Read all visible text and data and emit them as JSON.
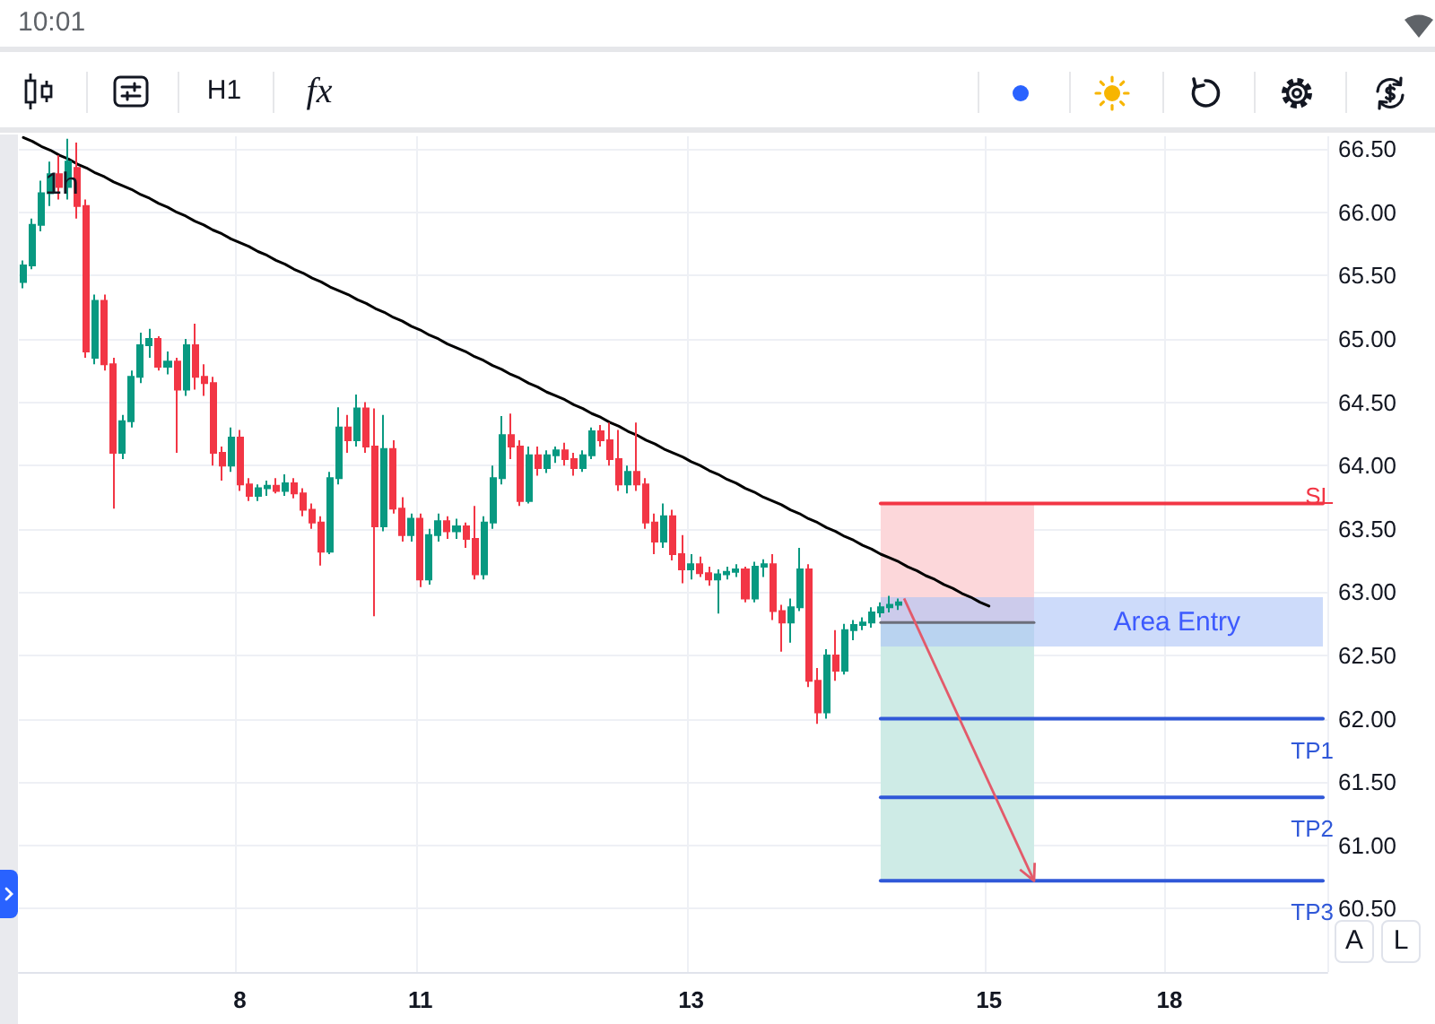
{
  "chart_data": {
    "type": "candlestick",
    "title": "1h",
    "categories": [
      null,
      null,
      null,
      null,
      null,
      null,
      null,
      null,
      null,
      null,
      null,
      null,
      null,
      null,
      null,
      null,
      null,
      null,
      null,
      null,
      null,
      null,
      null,
      null,
      "8",
      null,
      null,
      null,
      null,
      null,
      null,
      null,
      null,
      null,
      null,
      null,
      null,
      null,
      null,
      null,
      null,
      null,
      null,
      null,
      "11",
      null,
      null,
      null,
      null,
      null,
      null,
      null,
      null,
      null,
      null,
      null,
      null,
      null,
      null,
      null,
      null,
      null,
      null,
      null,
      null,
      null,
      null,
      null,
      null,
      null,
      null,
      null,
      null,
      null,
      "13",
      null,
      null,
      null,
      null,
      null,
      null,
      null,
      null,
      null,
      null,
      null,
      null,
      null,
      null,
      null,
      null,
      null,
      null,
      null,
      null,
      null,
      null,
      null,
      null,
      null,
      null,
      null,
      null,
      null,
      null,
      null,
      null,
      "15",
      null,
      null,
      null,
      null,
      null,
      null,
      null,
      null,
      null,
      null,
      null,
      null,
      null,
      null,
      null,
      null,
      null,
      null,
      null,
      "18",
      null,
      null,
      null,
      null,
      null,
      null,
      null,
      null,
      null,
      null,
      null,
      null,
      null,
      null,
      null,
      null,
      null
    ],
    "ohlc": [
      [
        65.45,
        65.62,
        65.4,
        65.58
      ],
      [
        65.58,
        65.95,
        65.55,
        65.9
      ],
      [
        65.9,
        66.25,
        65.85,
        66.15
      ],
      [
        66.15,
        66.4,
        66.05,
        66.3
      ],
      [
        66.3,
        66.45,
        66.1,
        66.2
      ],
      [
        66.2,
        66.58,
        66.1,
        66.4
      ],
      [
        66.35,
        66.55,
        65.95,
        66.05
      ],
      [
        66.05,
        66.1,
        64.85,
        64.9
      ],
      [
        64.85,
        65.35,
        64.8,
        65.3
      ],
      [
        65.3,
        65.35,
        64.75,
        64.8
      ],
      [
        64.8,
        64.85,
        63.66,
        64.1
      ],
      [
        64.1,
        64.4,
        64.05,
        64.35
      ],
      [
        64.35,
        64.75,
        64.3,
        64.7
      ],
      [
        64.7,
        65.05,
        64.65,
        64.95
      ],
      [
        64.95,
        65.08,
        64.85,
        65.0
      ],
      [
        65.0,
        65.02,
        64.75,
        64.78
      ],
      [
        64.78,
        64.9,
        64.72,
        64.82
      ],
      [
        64.82,
        64.85,
        64.1,
        64.6
      ],
      [
        64.6,
        65.0,
        64.55,
        64.95
      ],
      [
        64.95,
        65.12,
        64.6,
        64.7
      ],
      [
        64.7,
        64.8,
        64.55,
        64.65
      ],
      [
        64.65,
        64.7,
        64.0,
        64.1
      ],
      [
        64.1,
        64.15,
        63.88,
        64.0
      ],
      [
        64.0,
        64.3,
        63.95,
        64.22
      ],
      [
        64.22,
        64.28,
        63.8,
        63.85
      ],
      [
        63.85,
        63.9,
        63.72,
        63.76
      ],
      [
        63.76,
        63.85,
        63.72,
        63.82
      ],
      [
        63.82,
        63.88,
        63.76,
        63.84
      ],
      [
        63.84,
        63.9,
        63.78,
        63.8
      ],
      [
        63.8,
        63.93,
        63.76,
        63.86
      ],
      [
        63.86,
        63.9,
        63.74,
        63.78
      ],
      [
        63.78,
        63.82,
        63.6,
        63.65
      ],
      [
        63.65,
        63.7,
        63.5,
        63.55
      ],
      [
        63.55,
        63.6,
        63.21,
        63.32
      ],
      [
        63.32,
        63.95,
        63.3,
        63.9
      ],
      [
        63.9,
        64.46,
        63.85,
        64.3
      ],
      [
        64.3,
        64.4,
        64.1,
        64.2
      ],
      [
        64.2,
        64.56,
        64.15,
        64.45
      ],
      [
        64.45,
        64.5,
        64.1,
        64.15
      ],
      [
        64.15,
        64.45,
        62.81,
        63.52
      ],
      [
        63.52,
        64.4,
        63.48,
        64.13
      ],
      [
        64.13,
        64.2,
        63.62,
        63.66
      ],
      [
        63.66,
        63.75,
        63.4,
        63.45
      ],
      [
        63.45,
        63.62,
        63.4,
        63.58
      ],
      [
        63.58,
        63.62,
        63.04,
        63.1
      ],
      [
        63.1,
        63.5,
        63.06,
        63.45
      ],
      [
        63.45,
        63.62,
        63.4,
        63.56
      ],
      [
        63.56,
        63.6,
        63.42,
        63.48
      ],
      [
        63.48,
        63.58,
        63.42,
        63.52
      ],
      [
        63.52,
        63.55,
        63.35,
        63.42
      ],
      [
        63.42,
        63.68,
        63.1,
        63.14
      ],
      [
        63.14,
        63.6,
        63.1,
        63.55
      ],
      [
        63.55,
        64.0,
        63.5,
        63.9
      ],
      [
        63.9,
        64.39,
        63.85,
        64.24
      ],
      [
        64.24,
        64.41,
        64.05,
        64.15
      ],
      [
        64.15,
        64.2,
        63.68,
        63.72
      ],
      [
        63.72,
        64.15,
        63.7,
        64.08
      ],
      [
        64.08,
        64.15,
        63.92,
        63.98
      ],
      [
        63.98,
        64.12,
        63.94,
        64.08
      ],
      [
        64.08,
        64.15,
        64.02,
        64.12
      ],
      [
        64.12,
        64.18,
        64.0,
        64.05
      ],
      [
        64.05,
        64.1,
        63.92,
        63.98
      ],
      [
        63.98,
        64.12,
        63.95,
        64.08
      ],
      [
        64.08,
        64.3,
        64.05,
        64.27
      ],
      [
        64.27,
        64.32,
        64.15,
        64.2
      ],
      [
        64.2,
        64.34,
        64.0,
        64.05
      ],
      [
        64.05,
        64.28,
        63.8,
        63.85
      ],
      [
        63.85,
        64.0,
        63.78,
        63.95
      ],
      [
        63.95,
        64.34,
        63.8,
        63.85
      ],
      [
        63.85,
        63.9,
        63.5,
        63.55
      ],
      [
        63.55,
        63.62,
        63.3,
        63.4
      ],
      [
        63.4,
        63.7,
        63.35,
        63.6
      ],
      [
        63.6,
        63.65,
        63.25,
        63.3
      ],
      [
        63.3,
        63.45,
        63.07,
        63.18
      ],
      [
        63.18,
        63.3,
        63.1,
        63.22
      ],
      [
        63.22,
        63.28,
        63.12,
        63.15
      ],
      [
        63.15,
        63.2,
        63.05,
        63.1
      ],
      [
        63.1,
        63.18,
        62.83,
        63.14
      ],
      [
        63.14,
        63.2,
        63.1,
        63.16
      ],
      [
        63.16,
        63.22,
        63.12,
        63.18
      ],
      [
        63.18,
        63.2,
        62.92,
        62.95
      ],
      [
        62.95,
        63.24,
        62.92,
        63.2
      ],
      [
        63.2,
        63.26,
        63.12,
        63.22
      ],
      [
        63.22,
        63.3,
        62.78,
        62.85
      ],
      [
        62.85,
        62.9,
        62.53,
        62.76
      ],
      [
        62.76,
        62.95,
        62.6,
        62.88
      ],
      [
        62.88,
        63.35,
        62.85,
        63.18
      ],
      [
        63.18,
        63.22,
        62.25,
        62.3
      ],
      [
        62.3,
        62.4,
        61.96,
        62.05
      ],
      [
        62.05,
        62.55,
        62.0,
        62.5
      ],
      [
        62.5,
        62.7,
        62.3,
        62.38
      ],
      [
        62.38,
        62.75,
        62.35,
        62.7
      ],
      [
        62.7,
        62.78,
        62.62,
        62.74
      ],
      [
        62.74,
        62.8,
        62.7,
        62.76
      ],
      [
        62.76,
        62.88,
        62.72,
        62.84
      ],
      [
        62.84,
        62.92,
        62.8,
        62.88
      ],
      [
        62.88,
        62.97,
        62.84,
        62.9
      ],
      [
        62.9,
        62.95,
        62.86,
        62.92
      ],
      null,
      null,
      null,
      null,
      null,
      null,
      null,
      null,
      null,
      null,
      null,
      null,
      null,
      null,
      null,
      null,
      null,
      null,
      null,
      null,
      null,
      null,
      null,
      null,
      null,
      null,
      null,
      null,
      null,
      null,
      null,
      null,
      null,
      null,
      null,
      null,
      null,
      null,
      null,
      null,
      null,
      null,
      null,
      null,
      null,
      null,
      null
    ],
    "colors": [
      "#089981",
      "#089981",
      "#089981",
      "#089981",
      "#f23645",
      "#089981",
      "#f23645",
      "#f23645",
      "#089981",
      "#f23645",
      "#f23645",
      "#089981",
      "#089981",
      "#089981",
      "#089981",
      "#f23645",
      "#089981",
      "#f23645",
      "#089981",
      "#f23645",
      "#f23645",
      "#f23645",
      "#f23645",
      "#089981",
      "#f23645",
      "#f23645",
      "#089981",
      "#089981",
      "#f23645",
      "#089981",
      "#f23645",
      "#f23645",
      "#f23645",
      "#f23645",
      "#089981",
      "#089981",
      "#f23645",
      "#089981",
      "#f23645",
      "#f23645",
      "#089981",
      "#f23645",
      "#f23645",
      "#089981",
      "#f23645",
      "#089981",
      "#089981",
      "#f23645",
      "#089981",
      "#f23645",
      "#f23645",
      "#089981",
      "#089981",
      "#089981",
      "#f23645",
      "#f23645",
      "#089981",
      "#f23645",
      "#089981",
      "#089981",
      "#f23645",
      "#f23645",
      "#089981",
      "#089981",
      "#f23645",
      "#f23645",
      "#f23645",
      "#089981",
      "#f23645",
      "#f23645",
      "#f23645",
      "#089981",
      "#f23645",
      "#f23645",
      "#089981",
      "#f23645",
      "#f23645",
      "#089981",
      "#089981",
      "#089981",
      "#f23645",
      "#089981",
      "#089981",
      "#f23645",
      "#f23645",
      "#089981",
      "#089981",
      "#f23645",
      "#f23645",
      "#089981",
      "#f23645",
      "#089981",
      "#089981",
      "#089981",
      "#089981",
      "#089981",
      "#089981",
      "#089981",
      null,
      null,
      null,
      null,
      null,
      null,
      null,
      null,
      null,
      null,
      null,
      null,
      null,
      null,
      null,
      null,
      null,
      null,
      null,
      null,
      null,
      null,
      null,
      null,
      null,
      null,
      null,
      null,
      null,
      null,
      null,
      null,
      null,
      null,
      null,
      null,
      null,
      null,
      null,
      null,
      null,
      null,
      null,
      null,
      null,
      null,
      null
    ],
    "ylim": [
      60.0,
      66.6
    ],
    "yticks": [
      {
        "value": 60.5,
        "label": "60.50"
      },
      {
        "value": 61.0,
        "label": "61.00"
      },
      {
        "value": 61.5,
        "label": "61.50"
      },
      {
        "value": 62.0,
        "label": "62.00"
      },
      {
        "value": 62.5,
        "label": "62.50"
      },
      {
        "value": 63.0,
        "label": "63.00"
      },
      {
        "value": 63.5,
        "label": "63.50"
      },
      {
        "value": 64.0,
        "label": "64.00"
      },
      {
        "value": 64.5,
        "label": "64.50"
      },
      {
        "value": 65.0,
        "label": "65.00"
      },
      {
        "value": 65.5,
        "label": "65.50"
      },
      {
        "value": 66.0,
        "label": "66.00"
      },
      {
        "value": 66.5,
        "label": "66.50"
      }
    ],
    "grid": true,
    "bands": [
      {
        "axis": "y",
        "from": 62.57,
        "to": 62.96,
        "label": "Area Entry",
        "color": "#cddbfa"
      }
    ],
    "series": [
      {
        "type": "line",
        "color": "#6b6e7a",
        "values": [
          null,
          null,
          null,
          null,
          null,
          null,
          null,
          null,
          null,
          null,
          null,
          null,
          null,
          null,
          null,
          null,
          null,
          null,
          null,
          null,
          null,
          null,
          null,
          null,
          null,
          null,
          null,
          null,
          null,
          null,
          null,
          null,
          null,
          null,
          null,
          null,
          null,
          null,
          null,
          null,
          null,
          null,
          null,
          null,
          null,
          null,
          null,
          null,
          null,
          null,
          null,
          null,
          null,
          null,
          null,
          null,
          null,
          null,
          null,
          null,
          null,
          null,
          null,
          null,
          null,
          null,
          null,
          null,
          null,
          null,
          null,
          null,
          null,
          null,
          null,
          null,
          null,
          null,
          null,
          null,
          null,
          null,
          null,
          null,
          null,
          null,
          null,
          null,
          null,
          null,
          null,
          null,
          null,
          null,
          null,
          62.76,
          62.76,
          62.76,
          62.76,
          62.76,
          62.76,
          62.76,
          62.76,
          62.76,
          62.76,
          62.76,
          62.76,
          62.76,
          62.76,
          62.76,
          62.76,
          62.76,
          62.76,
          null,
          null,
          null,
          null,
          null,
          null,
          null,
          null,
          null,
          null,
          null,
          null,
          null,
          null,
          null,
          null,
          null,
          null,
          null,
          null,
          null,
          null,
          null,
          null,
          null,
          null,
          null,
          null,
          null,
          null,
          null,
          null
        ]
      },
      {
        "type": "line",
        "color": "#000000",
        "values": [
          66.59,
          66.56,
          66.52,
          66.49,
          66.45,
          66.42,
          66.38,
          66.35,
          66.31,
          66.28,
          66.24,
          66.21,
          66.18,
          66.14,
          66.11,
          66.07,
          66.04,
          66.0,
          65.97,
          65.93,
          65.9,
          65.86,
          65.83,
          65.79,
          65.76,
          65.73,
          65.69,
          65.66,
          65.62,
          65.59,
          65.55,
          65.52,
          65.48,
          65.45,
          65.41,
          65.38,
          65.35,
          65.31,
          65.28,
          65.24,
          65.21,
          65.17,
          65.14,
          65.1,
          65.07,
          65.03,
          65.0,
          64.96,
          64.93,
          64.9,
          64.86,
          64.83,
          64.79,
          64.76,
          64.72,
          64.69,
          64.65,
          64.62,
          64.58,
          64.55,
          64.52,
          64.48,
          64.45,
          64.41,
          64.38,
          64.34,
          64.31,
          64.27,
          64.24,
          64.2,
          64.17,
          64.13,
          64.1,
          64.07,
          64.03,
          64.0,
          63.96,
          63.93,
          63.89,
          63.86,
          63.82,
          63.79,
          63.75,
          63.72,
          63.69,
          63.65,
          63.62,
          63.58,
          63.55,
          63.51,
          63.48,
          63.44,
          63.41,
          63.37,
          63.34,
          63.3,
          63.27,
          63.24,
          63.2,
          63.17,
          63.13,
          63.1,
          63.06,
          63.03,
          62.99,
          62.96,
          62.92,
          62.89,
          null,
          null,
          null,
          null,
          null,
          null,
          null,
          null,
          null,
          null,
          null,
          null,
          null,
          null,
          null,
          null,
          null,
          null,
          null,
          null,
          null,
          null,
          null,
          null,
          null,
          null,
          null,
          null,
          null,
          null,
          null,
          null,
          null,
          null,
          null,
          null,
          null
        ]
      },
      {
        "name": "SL",
        "type": "line",
        "color": "#f23645",
        "values": [
          null,
          null,
          null,
          null,
          null,
          null,
          null,
          null,
          null,
          null,
          null,
          null,
          null,
          null,
          null,
          null,
          null,
          null,
          null,
          null,
          null,
          null,
          null,
          null,
          null,
          null,
          null,
          null,
          null,
          null,
          null,
          null,
          null,
          null,
          null,
          null,
          null,
          null,
          null,
          null,
          null,
          null,
          null,
          null,
          null,
          null,
          null,
          null,
          null,
          null,
          null,
          null,
          null,
          null,
          null,
          null,
          null,
          null,
          null,
          null,
          null,
          null,
          null,
          null,
          null,
          null,
          null,
          null,
          null,
          null,
          null,
          null,
          null,
          null,
          null,
          null,
          null,
          null,
          null,
          null,
          null,
          null,
          null,
          null,
          null,
          null,
          null,
          null,
          null,
          null,
          null,
          null,
          null,
          null,
          null,
          63.7,
          63.7,
          63.7,
          63.7,
          63.7,
          63.7,
          63.7,
          63.7,
          63.7,
          63.7,
          63.7,
          63.7,
          63.7,
          63.7,
          63.7,
          63.7,
          63.7,
          63.7,
          63.7,
          63.7,
          63.7,
          63.7,
          63.7,
          63.7,
          63.7,
          63.7,
          63.7,
          63.7,
          63.7,
          63.7,
          63.7,
          63.7,
          63.7,
          63.7,
          63.7,
          63.7,
          63.7,
          63.7,
          63.7,
          63.7,
          63.7,
          63.7,
          63.7,
          63.7,
          63.7,
          63.7,
          63.7,
          63.7,
          63.7,
          63.7
        ],
        "lower": [
          null,
          null,
          null,
          null,
          null,
          null,
          null,
          null,
          null,
          null,
          null,
          null,
          null,
          null,
          null,
          null,
          null,
          null,
          null,
          null,
          null,
          null,
          null,
          null,
          null,
          null,
          null,
          null,
          null,
          null,
          null,
          null,
          null,
          null,
          null,
          null,
          null,
          null,
          null,
          null,
          null,
          null,
          null,
          null,
          null,
          null,
          null,
          null,
          null,
          null,
          null,
          null,
          null,
          null,
          null,
          null,
          null,
          null,
          null,
          null,
          null,
          null,
          null,
          null,
          null,
          null,
          null,
          null,
          null,
          null,
          null,
          null,
          null,
          null,
          null,
          null,
          null,
          null,
          null,
          null,
          null,
          null,
          null,
          null,
          null,
          null,
          null,
          null,
          null,
          null,
          null,
          null,
          null,
          null,
          null,
          62.76,
          62.76,
          62.76,
          62.76,
          62.76,
          62.76,
          62.76,
          62.76,
          62.76,
          62.76,
          62.76,
          62.76,
          62.76,
          62.76,
          62.76,
          62.76,
          62.76,
          62.76,
          null,
          null,
          null,
          null,
          null,
          null,
          null,
          null,
          null,
          null,
          null,
          null,
          null,
          null,
          null,
          null,
          null,
          null,
          null,
          null,
          null,
          null,
          null,
          null,
          null,
          null,
          null,
          null,
          null,
          null,
          null,
          null
        ],
        "upper": [
          null,
          null,
          null,
          null,
          null,
          null,
          null,
          null,
          null,
          null,
          null,
          null,
          null,
          null,
          null,
          null,
          null,
          null,
          null,
          null,
          null,
          null,
          null,
          null,
          null,
          null,
          null,
          null,
          null,
          null,
          null,
          null,
          null,
          null,
          null,
          null,
          null,
          null,
          null,
          null,
          null,
          null,
          null,
          null,
          null,
          null,
          null,
          null,
          null,
          null,
          null,
          null,
          null,
          null,
          null,
          null,
          null,
          null,
          null,
          null,
          null,
          null,
          null,
          null,
          null,
          null,
          null,
          null,
          null,
          null,
          null,
          null,
          null,
          null,
          null,
          null,
          null,
          null,
          null,
          null,
          null,
          null,
          null,
          null,
          null,
          null,
          null,
          null,
          null,
          null,
          null,
          null,
          null,
          null,
          null,
          63.7,
          63.7,
          63.7,
          63.7,
          63.7,
          63.7,
          63.7,
          63.7,
          63.7,
          63.7,
          63.7,
          63.7,
          63.7,
          63.7,
          63.7,
          63.7,
          63.7,
          63.7,
          null,
          null,
          null,
          null,
          null,
          null,
          null,
          null,
          null,
          null,
          null,
          null,
          null,
          null,
          null,
          null,
          null,
          null,
          null,
          null,
          null,
          null,
          null,
          null,
          null,
          null,
          null,
          null,
          null,
          null,
          null,
          null
        ]
      },
      {
        "name": "TP1",
        "type": "line",
        "color": "#3058d8",
        "values": [
          null,
          null,
          null,
          null,
          null,
          null,
          null,
          null,
          null,
          null,
          null,
          null,
          null,
          null,
          null,
          null,
          null,
          null,
          null,
          null,
          null,
          null,
          null,
          null,
          null,
          null,
          null,
          null,
          null,
          null,
          null,
          null,
          null,
          null,
          null,
          null,
          null,
          null,
          null,
          null,
          null,
          null,
          null,
          null,
          null,
          null,
          null,
          null,
          null,
          null,
          null,
          null,
          null,
          null,
          null,
          null,
          null,
          null,
          null,
          null,
          null,
          null,
          null,
          null,
          null,
          null,
          null,
          null,
          null,
          null,
          null,
          null,
          null,
          null,
          null,
          null,
          null,
          null,
          null,
          null,
          null,
          null,
          null,
          null,
          null,
          null,
          null,
          null,
          null,
          null,
          null,
          null,
          null,
          null,
          null,
          62.0,
          62.0,
          62.0,
          62.0,
          62.0,
          62.0,
          62.0,
          62.0,
          62.0,
          62.0,
          62.0,
          62.0,
          62.0,
          62.0,
          62.0,
          62.0,
          62.0,
          62.0,
          62.0,
          62.0,
          62.0,
          62.0,
          62.0,
          62.0,
          62.0,
          62.0,
          62.0,
          62.0,
          62.0,
          62.0,
          62.0,
          62.0,
          62.0,
          62.0,
          62.0,
          62.0,
          62.0,
          62.0,
          62.0,
          62.0,
          62.0,
          62.0,
          62.0,
          62.0,
          62.0,
          62.0,
          62.0,
          62.0,
          62.0,
          62.0
        ]
      },
      {
        "name": "TP2",
        "type": "line",
        "color": "#3058d8",
        "values": [
          null,
          null,
          null,
          null,
          null,
          null,
          null,
          null,
          null,
          null,
          null,
          null,
          null,
          null,
          null,
          null,
          null,
          null,
          null,
          null,
          null,
          null,
          null,
          null,
          null,
          null,
          null,
          null,
          null,
          null,
          null,
          null,
          null,
          null,
          null,
          null,
          null,
          null,
          null,
          null,
          null,
          null,
          null,
          null,
          null,
          null,
          null,
          null,
          null,
          null,
          null,
          null,
          null,
          null,
          null,
          null,
          null,
          null,
          null,
          null,
          null,
          null,
          null,
          null,
          null,
          null,
          null,
          null,
          null,
          null,
          null,
          null,
          null,
          null,
          null,
          null,
          null,
          null,
          null,
          null,
          null,
          null,
          null,
          null,
          null,
          null,
          null,
          null,
          null,
          null,
          null,
          null,
          null,
          null,
          null,
          61.38,
          61.38,
          61.38,
          61.38,
          61.38,
          61.38,
          61.38,
          61.38,
          61.38,
          61.38,
          61.38,
          61.38,
          61.38,
          61.38,
          61.38,
          61.38,
          61.38,
          61.38,
          61.38,
          61.38,
          61.38,
          61.38,
          61.38,
          61.38,
          61.38,
          61.38,
          61.38,
          61.38,
          61.38,
          61.38,
          61.38,
          61.38,
          61.38,
          61.38,
          61.38,
          61.38,
          61.38,
          61.38,
          61.38,
          61.38,
          61.38,
          61.38,
          61.38,
          61.38,
          61.38,
          61.38,
          61.38,
          61.38,
          61.38,
          61.38
        ]
      },
      {
        "name": "TP3",
        "type": "line",
        "color": "#3058d8",
        "values": [
          null,
          null,
          null,
          null,
          null,
          null,
          null,
          null,
          null,
          null,
          null,
          null,
          null,
          null,
          null,
          null,
          null,
          null,
          null,
          null,
          null,
          null,
          null,
          null,
          null,
          null,
          null,
          null,
          null,
          null,
          null,
          null,
          null,
          null,
          null,
          null,
          null,
          null,
          null,
          null,
          null,
          null,
          null,
          null,
          null,
          null,
          null,
          null,
          null,
          null,
          null,
          null,
          null,
          null,
          null,
          null,
          null,
          null,
          null,
          null,
          null,
          null,
          null,
          null,
          null,
          null,
          null,
          null,
          null,
          null,
          null,
          null,
          null,
          null,
          null,
          null,
          null,
          null,
          null,
          null,
          null,
          null,
          null,
          null,
          null,
          null,
          null,
          null,
          null,
          null,
          null,
          null,
          null,
          null,
          null,
          60.72,
          60.72,
          60.72,
          60.72,
          60.72,
          60.72,
          60.72,
          60.72,
          60.72,
          60.72,
          60.72,
          60.72,
          60.72,
          60.72,
          60.72,
          60.72,
          60.72,
          60.72,
          60.72,
          60.72,
          60.72,
          60.72,
          60.72,
          60.72,
          60.72,
          60.72,
          60.72,
          60.72,
          60.72,
          60.72,
          60.72,
          60.72,
          60.72,
          60.72,
          60.72,
          60.72,
          60.72,
          60.72,
          60.72,
          60.72,
          60.72,
          60.72,
          60.72,
          60.72,
          60.72,
          60.72,
          60.72,
          60.72,
          60.72,
          60.72
        ],
        "lower": [
          null,
          null,
          null,
          null,
          null,
          null,
          null,
          null,
          null,
          null,
          null,
          null,
          null,
          null,
          null,
          null,
          null,
          null,
          null,
          null,
          null,
          null,
          null,
          null,
          null,
          null,
          null,
          null,
          null,
          null,
          null,
          null,
          null,
          null,
          null,
          null,
          null,
          null,
          null,
          null,
          null,
          null,
          null,
          null,
          null,
          null,
          null,
          null,
          null,
          null,
          null,
          null,
          null,
          null,
          null,
          null,
          null,
          null,
          null,
          null,
          null,
          null,
          null,
          null,
          null,
          null,
          null,
          null,
          null,
          null,
          null,
          null,
          null,
          null,
          null,
          null,
          null,
          null,
          null,
          null,
          null,
          null,
          null,
          null,
          null,
          null,
          null,
          null,
          null,
          null,
          null,
          null,
          null,
          null,
          null,
          60.72,
          60.72,
          60.72,
          60.72,
          60.72,
          60.72,
          60.72,
          60.72,
          60.72,
          60.72,
          60.72,
          60.72,
          60.72,
          60.72,
          60.72,
          60.72,
          60.72,
          60.72,
          null,
          null,
          null,
          null,
          null,
          null,
          null,
          null,
          null,
          null,
          null,
          null,
          null,
          null,
          null,
          null,
          null,
          null,
          null,
          null,
          null,
          null,
          null,
          null,
          null,
          null,
          null,
          null,
          null,
          null,
          null,
          null
        ],
        "upper": [
          null,
          null,
          null,
          null,
          null,
          null,
          null,
          null,
          null,
          null,
          null,
          null,
          null,
          null,
          null,
          null,
          null,
          null,
          null,
          null,
          null,
          null,
          null,
          null,
          null,
          null,
          null,
          null,
          null,
          null,
          null,
          null,
          null,
          null,
          null,
          null,
          null,
          null,
          null,
          null,
          null,
          null,
          null,
          null,
          null,
          null,
          null,
          null,
          null,
          null,
          null,
          null,
          null,
          null,
          null,
          null,
          null,
          null,
          null,
          null,
          null,
          null,
          null,
          null,
          null,
          null,
          null,
          null,
          null,
          null,
          null,
          null,
          null,
          null,
          null,
          null,
          null,
          null,
          null,
          null,
          null,
          null,
          null,
          null,
          null,
          null,
          null,
          null,
          null,
          null,
          null,
          null,
          null,
          null,
          null,
          62.76,
          62.76,
          62.76,
          62.76,
          62.76,
          62.76,
          62.76,
          62.76,
          62.76,
          62.76,
          62.76,
          62.76,
          62.76,
          62.76,
          62.76,
          62.76,
          62.76,
          62.76,
          null,
          null,
          null,
          null,
          null,
          null,
          null,
          null,
          null,
          null,
          null,
          null,
          null,
          null,
          null,
          null,
          null,
          null,
          null,
          null,
          null,
          null,
          null,
          null,
          null,
          null,
          null,
          null,
          null,
          null,
          null,
          null
        ]
      }
    ],
    "annotations": [
      "10:01",
      "H1",
      "fx",
      "A",
      "L"
    ]
  }
}
